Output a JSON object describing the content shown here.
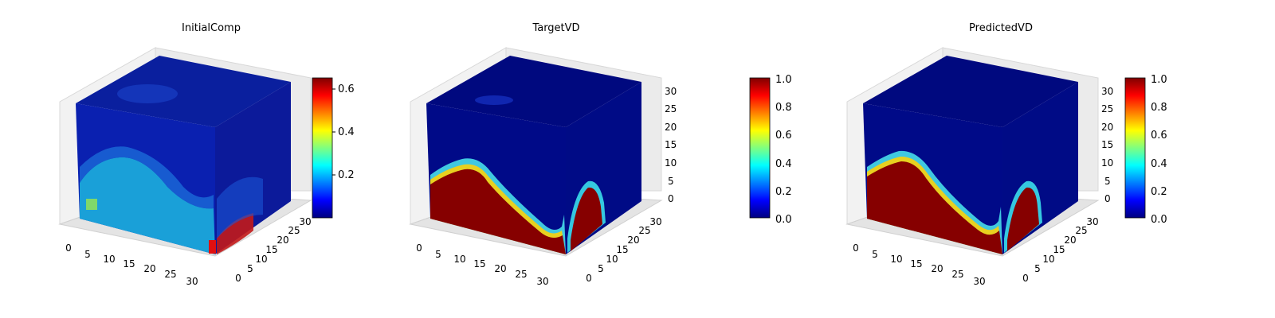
{
  "chart_data": [
    {
      "type": "3d-voxel",
      "title": "InitialComp",
      "x_ticks": [
        "0",
        "5",
        "10",
        "15",
        "20",
        "25",
        "30"
      ],
      "y_ticks": [
        "0",
        "5",
        "10",
        "15",
        "20",
        "25",
        "30"
      ],
      "z_ticks": [],
      "axis_range": [
        0,
        32
      ],
      "colormap": "jet",
      "colorbar": {
        "range": [
          0.0,
          0.65
        ],
        "ticks": [
          "0.2",
          "0.4",
          "0.6"
        ]
      },
      "field_description": "low values (~0.1) in upper region, ~0.2-0.3 band in lower region, high (~0.6) near the bottom right corner"
    },
    {
      "type": "3d-voxel",
      "title": "TargetVD",
      "x_ticks": [
        "0",
        "5",
        "10",
        "15",
        "20",
        "25",
        "30"
      ],
      "y_ticks": [
        "0",
        "5",
        "10",
        "15",
        "20",
        "25",
        "30"
      ],
      "z_ticks": [
        "0",
        "5",
        "10",
        "15",
        "20",
        "25",
        "30"
      ],
      "axis_range": [
        0,
        32
      ],
      "colormap": "jet",
      "colorbar": {
        "range": [
          0.0,
          1.0
        ],
        "ticks": [
          "0.0",
          "0.2",
          "0.4",
          "0.6",
          "0.8",
          "1.0"
        ]
      },
      "field_description": "binary-like field: value 1.0 below a wavy interface, 0.0 above"
    },
    {
      "type": "3d-voxel",
      "title": "PredictedVD",
      "x_ticks": [
        "0",
        "5",
        "10",
        "15",
        "20",
        "25",
        "30"
      ],
      "y_ticks": [
        "0",
        "5",
        "10",
        "15",
        "20",
        "25",
        "30"
      ],
      "z_ticks": [
        "0",
        "5",
        "10",
        "15",
        "20",
        "25",
        "30"
      ],
      "axis_range": [
        0,
        32
      ],
      "colormap": "jet",
      "colorbar": {
        "range": [
          0.0,
          1.0
        ],
        "ticks": [
          "0.0",
          "0.2",
          "0.4",
          "0.6",
          "0.8",
          "1.0"
        ]
      },
      "field_description": "binary-like field: value 1.0 below a wavy interface, 0.0 above"
    }
  ]
}
